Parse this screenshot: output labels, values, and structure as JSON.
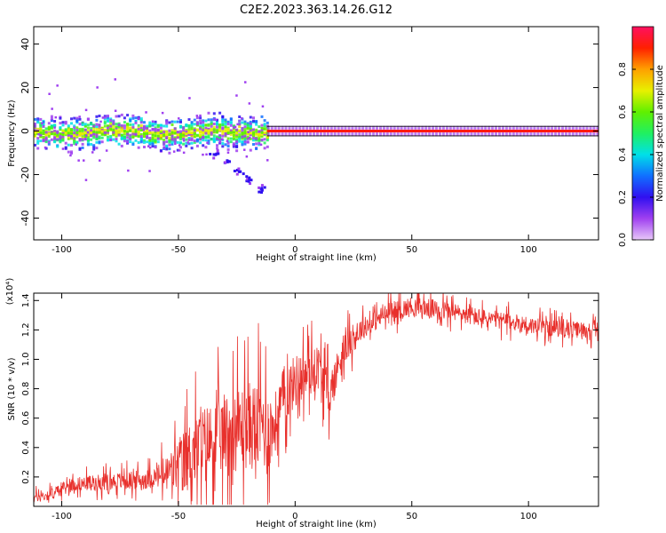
{
  "title": "C2E2.2023.363.14.26.G12",
  "chart_data": [
    {
      "type": "heatmap",
      "xlabel": "Height of straight line (km)",
      "ylabel": "Frequency (Hz)",
      "xlim": [
        -112,
        130
      ],
      "ylim": [
        -50,
        48
      ],
      "xticks": [
        -100,
        -50,
        0,
        50,
        100
      ],
      "yticks": [
        -40,
        -20,
        0,
        20,
        40
      ],
      "grid": false,
      "colorbar": {
        "label": "Normalized spectral amplitude",
        "range": [
          0,
          1
        ],
        "ticks": [
          "0.0",
          "0.2",
          "0.4",
          "0.6",
          "0.8"
        ],
        "colors": [
          "#e8c8f8",
          "#a040f0",
          "#3010f0",
          "#1070ff",
          "#00e0e8",
          "#20f060",
          "#60f000",
          "#e8f000",
          "#ffa000",
          "#ff2000",
          "#ff1060"
        ]
      },
      "features": {
        "noisy_region_x": [
          -112,
          -12
        ],
        "noisy_spread_hz": 10,
        "tail_points": [
          [
            -35,
            -10
          ],
          [
            -30,
            -14
          ],
          [
            -25,
            -18
          ],
          [
            -20,
            -22
          ],
          [
            -15,
            -26
          ]
        ],
        "stable_line_x": [
          -12,
          130
        ],
        "stable_freq_hz": 0
      }
    },
    {
      "type": "line",
      "xlabel": "Height of straight line (km)",
      "ylabel": "SNR (10 * v/v)",
      "yscale_label": "(x10⁴)",
      "xlim": [
        -112,
        130
      ],
      "ylim": [
        0,
        1.45
      ],
      "xticks": [
        -100,
        -50,
        0,
        50,
        100
      ],
      "yticks": [
        "0.2",
        "0.4",
        "0.6",
        "0.8",
        "1.0",
        "1.2",
        "1.4"
      ],
      "color": "#e8302c",
      "trend": [
        [
          -112,
          0.06
        ],
        [
          -105,
          0.08
        ],
        [
          -95,
          0.15
        ],
        [
          -80,
          0.17
        ],
        [
          -65,
          0.18
        ],
        [
          -55,
          0.22
        ],
        [
          -48,
          0.3
        ],
        [
          -40,
          0.42
        ],
        [
          -30,
          0.5
        ],
        [
          -20,
          0.55
        ],
        [
          -13,
          0.55
        ],
        [
          -10,
          0.5
        ],
        [
          -5,
          0.75
        ],
        [
          0,
          0.85
        ],
        [
          5,
          0.9
        ],
        [
          10,
          0.95
        ],
        [
          15,
          0.75
        ],
        [
          20,
          1.05
        ],
        [
          28,
          1.2
        ],
        [
          38,
          1.3
        ],
        [
          50,
          1.36
        ],
        [
          65,
          1.33
        ],
        [
          80,
          1.28
        ],
        [
          90,
          1.26
        ],
        [
          105,
          1.22
        ],
        [
          120,
          1.2
        ],
        [
          130,
          1.2
        ]
      ],
      "noise_amplitude": [
        [
          -112,
          0.05
        ],
        [
          -60,
          0.1
        ],
        [
          -45,
          0.35
        ],
        [
          -12,
          0.45
        ],
        [
          -10,
          0.3
        ],
        [
          15,
          0.2
        ],
        [
          30,
          0.1
        ],
        [
          130,
          0.08
        ]
      ]
    }
  ]
}
